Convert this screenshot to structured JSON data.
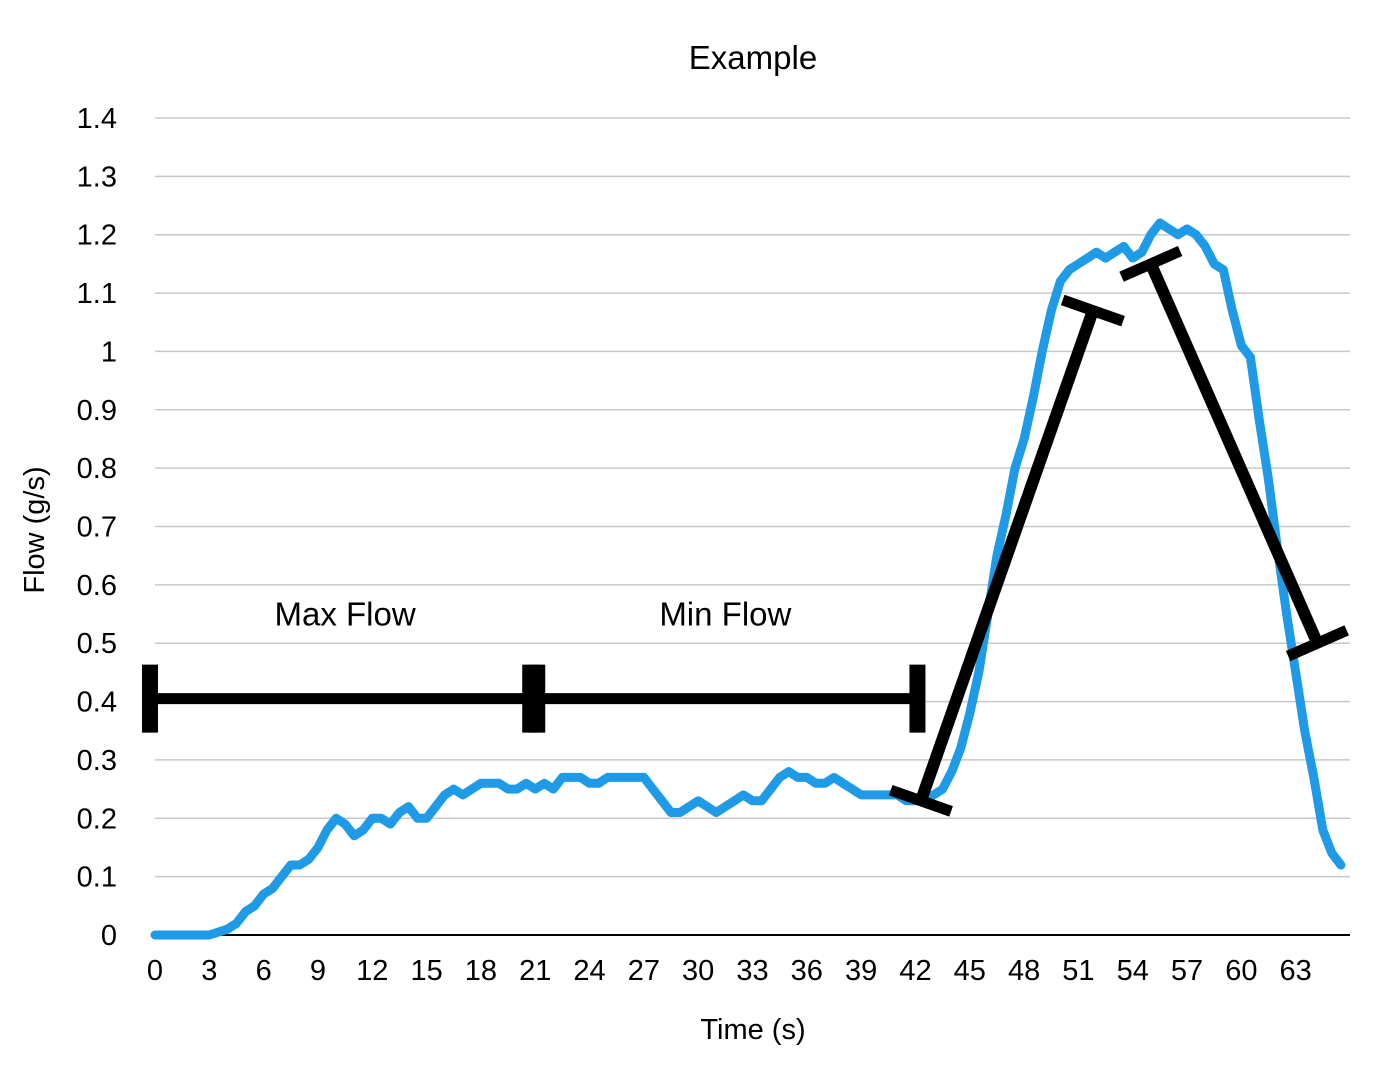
{
  "chart_data": {
    "type": "line",
    "title": "Example",
    "xlabel": "Time (s)",
    "ylabel": "Flow (g/s)",
    "xlim": [
      0,
      66
    ],
    "ylim": [
      0,
      1.4
    ],
    "x_ticks": [
      "0",
      "3",
      "6",
      "9",
      "12",
      "15",
      "18",
      "21",
      "24",
      "27",
      "30",
      "33",
      "36",
      "39",
      "42",
      "45",
      "48",
      "51",
      "54",
      "57",
      "60",
      "63"
    ],
    "y_ticks": [
      "0",
      "0.1",
      "0.2",
      "0.3",
      "0.4",
      "0.5",
      "0.6",
      "0.7",
      "0.8",
      "0.9",
      "1",
      "1.1",
      "1.2",
      "1.3",
      "1.4"
    ],
    "grid": true,
    "legend": "none",
    "series_color": "#1e9ae6",
    "annotation_color": "#000000",
    "series": [
      {
        "x": [
          0,
          1,
          2,
          3,
          4,
          4.5,
          5,
          5.5,
          6,
          6.5,
          7,
          7.5,
          8,
          8.5,
          9,
          9.5,
          10,
          10.5,
          11,
          11.5,
          12,
          12.5,
          13,
          13.5,
          14,
          14.5,
          15,
          15.5,
          16,
          16.5,
          17,
          17.5,
          18,
          18.5,
          19,
          19.5,
          20,
          20.5,
          21,
          21.5,
          22,
          22.5,
          23,
          23.5,
          24,
          24.5,
          25,
          25.5,
          26,
          26.5,
          27,
          27.5,
          28,
          28.5,
          29,
          29.5,
          30,
          30.5,
          31,
          31.5,
          32,
          32.5,
          33,
          33.5,
          34,
          34.5,
          35,
          35.5,
          36,
          36.5,
          37,
          37.5,
          38,
          38.5,
          39,
          39.5,
          40,
          40.5,
          41,
          41.5,
          42,
          42.5,
          43,
          43.5,
          44,
          44.5,
          45,
          45.5,
          46,
          46.5,
          47,
          47.5,
          48,
          48.5,
          49,
          49.5,
          50,
          50.5,
          51,
          51.5,
          52,
          52.5,
          53,
          53.5,
          54,
          54.5,
          55,
          55.5,
          56,
          56.5,
          57,
          57.5,
          58,
          58.5,
          59,
          59.5,
          60,
          60.5,
          61,
          61.5,
          62,
          62.5,
          63,
          63.5,
          64,
          64.5,
          65,
          65.5
        ],
        "y": [
          0,
          0,
          0,
          0,
          0.01,
          0.02,
          0.04,
          0.05,
          0.07,
          0.08,
          0.1,
          0.12,
          0.12,
          0.13,
          0.15,
          0.18,
          0.2,
          0.19,
          0.17,
          0.18,
          0.2,
          0.2,
          0.19,
          0.21,
          0.22,
          0.2,
          0.2,
          0.22,
          0.24,
          0.25,
          0.24,
          0.25,
          0.26,
          0.26,
          0.26,
          0.25,
          0.25,
          0.26,
          0.25,
          0.26,
          0.25,
          0.27,
          0.27,
          0.27,
          0.26,
          0.26,
          0.27,
          0.27,
          0.27,
          0.27,
          0.27,
          0.25,
          0.23,
          0.21,
          0.21,
          0.22,
          0.23,
          0.22,
          0.21,
          0.22,
          0.23,
          0.24,
          0.23,
          0.23,
          0.25,
          0.27,
          0.28,
          0.27,
          0.27,
          0.26,
          0.26,
          0.27,
          0.26,
          0.25,
          0.24,
          0.24,
          0.24,
          0.24,
          0.24,
          0.23,
          0.23,
          0.23,
          0.24,
          0.25,
          0.28,
          0.32,
          0.38,
          0.45,
          0.55,
          0.65,
          0.72,
          0.8,
          0.85,
          0.92,
          1.0,
          1.07,
          1.12,
          1.14,
          1.15,
          1.16,
          1.17,
          1.16,
          1.17,
          1.18,
          1.16,
          1.17,
          1.2,
          1.22,
          1.21,
          1.2,
          1.21,
          1.2,
          1.18,
          1.15,
          1.14,
          1.07,
          1.01,
          0.99,
          0.88,
          0.78,
          0.66,
          0.55,
          0.45,
          0.35,
          0.27,
          0.18,
          0.14,
          0.12
        ]
      }
    ],
    "annotations": {
      "range_bars": [
        {
          "x0": 0,
          "x1": 21,
          "y": 0.405,
          "label": "Max Flow",
          "label_y": 0.53
        },
        {
          "x0": 21,
          "x1": 42,
          "y": 0.405,
          "label": "Min Flow",
          "label_y": 0.53
        }
      ],
      "slope_bars": [
        {
          "x0": 42.3,
          "y0": 0.23,
          "x1": 51.8,
          "y1": 1.07
        },
        {
          "x0": 55.0,
          "y0": 1.15,
          "x1": 64.2,
          "y1": 0.5
        }
      ]
    }
  }
}
